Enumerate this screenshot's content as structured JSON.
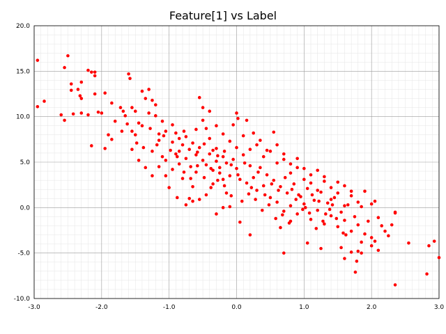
{
  "chart_data": {
    "type": "scatter",
    "title": "Feature[1] vs Label",
    "xlabel": "",
    "ylabel": "",
    "xlim": [
      -3.0,
      3.0
    ],
    "ylim": [
      -10.0,
      20.0
    ],
    "x_ticks": [
      "-3.0",
      "-2.0",
      "-1.0",
      "0.0",
      "1.0",
      "2.0",
      "3.0"
    ],
    "y_ticks": [
      "20.0",
      "15.0",
      "10.0",
      "5.0",
      "0.0",
      "-5.0",
      "-10.0"
    ],
    "grid": true,
    "marker_color": "#ff0000",
    "points": [
      [
        -2.95,
        16.2
      ],
      [
        -2.95,
        11.1
      ],
      [
        -2.85,
        11.7
      ],
      [
        -2.55,
        15.4
      ],
      [
        -2.5,
        16.7
      ],
      [
        -2.55,
        9.6
      ],
      [
        -2.45,
        13.6
      ],
      [
        -2.45,
        12.9
      ],
      [
        -2.35,
        13.0
      ],
      [
        -2.32,
        12.3
      ],
      [
        -2.3,
        13.8
      ],
      [
        -2.3,
        12.0
      ],
      [
        -2.2,
        15.1
      ],
      [
        -2.15,
        14.9
      ],
      [
        -2.1,
        14.5
      ],
      [
        -2.1,
        14.9
      ],
      [
        -2.1,
        12.5
      ],
      [
        -2.05,
        10.5
      ],
      [
        -2.0,
        10.4
      ],
      [
        -2.15,
        6.8
      ],
      [
        -1.95,
        12.6
      ],
      [
        -1.85,
        11.5
      ],
      [
        -1.9,
        8.0
      ],
      [
        -1.95,
        6.5
      ],
      [
        -2.6,
        10.2
      ],
      [
        -2.3,
        10.4
      ],
      [
        -2.2,
        10.2
      ],
      [
        -2.42,
        10.3
      ],
      [
        -1.85,
        7.5
      ],
      [
        -1.6,
        14.7
      ],
      [
        -1.58,
        14.2
      ],
      [
        -1.55,
        11.0
      ],
      [
        -1.5,
        10.6
      ],
      [
        -1.5,
        8.0
      ],
      [
        -1.45,
        9.3
      ],
      [
        -1.4,
        12.8
      ],
      [
        -1.35,
        12.0
      ],
      [
        -1.3,
        13.0
      ],
      [
        -1.25,
        11.8
      ],
      [
        -1.2,
        10.1
      ],
      [
        -1.15,
        8.1
      ],
      [
        -1.1,
        5.6
      ],
      [
        -1.05,
        3.5
      ],
      [
        -1.0,
        2.2
      ],
      [
        -1.55,
        6.4
      ],
      [
        -1.7,
        8.4
      ],
      [
        -1.8,
        9.5
      ],
      [
        -1.65,
        10.1
      ],
      [
        -1.45,
        5.2
      ],
      [
        -1.35,
        4.4
      ],
      [
        -1.25,
        6.2
      ],
      [
        -1.15,
        7.4
      ],
      [
        -1.72,
        11.0
      ],
      [
        -1.68,
        10.6
      ],
      [
        -1.62,
        9.2
      ],
      [
        -1.55,
        8.4
      ],
      [
        -1.4,
        9.0
      ],
      [
        -1.3,
        10.4
      ],
      [
        -1.2,
        11.3
      ],
      [
        -1.1,
        9.5
      ],
      [
        -1.05,
        8.4
      ],
      [
        -0.95,
        7.2
      ],
      [
        -0.9,
        5.9
      ],
      [
        -0.85,
        4.8
      ],
      [
        -0.8,
        3.2
      ],
      [
        -0.75,
        0.3
      ],
      [
        -0.7,
        1.0
      ],
      [
        -0.65,
        2.3
      ],
      [
        -0.6,
        3.9
      ],
      [
        -0.55,
        12.1
      ],
      [
        -0.5,
        11.0
      ],
      [
        -0.45,
        8.7
      ],
      [
        -0.4,
        7.6
      ],
      [
        -0.35,
        6.3
      ],
      [
        -0.3,
        5.1
      ],
      [
        -0.25,
        4.4
      ],
      [
        -0.2,
        3.1
      ],
      [
        -0.15,
        1.6
      ],
      [
        -0.1,
        0.1
      ],
      [
        -0.05,
        9.1
      ],
      [
        0.0,
        10.4
      ],
      [
        0.02,
        9.8
      ],
      [
        -0.95,
        9.1
      ],
      [
        -0.9,
        8.2
      ],
      [
        -0.85,
        7.6
      ],
      [
        -0.8,
        6.9
      ],
      [
        -0.75,
        7.8
      ],
      [
        -0.7,
        6.4
      ],
      [
        -0.65,
        7.1
      ],
      [
        -0.6,
        5.8
      ],
      [
        -0.55,
        6.6
      ],
      [
        -0.5,
        5.2
      ],
      [
        -0.45,
        4.7
      ],
      [
        -0.4,
        5.9
      ],
      [
        -0.35,
        4.1
      ],
      [
        -0.3,
        6.5
      ],
      [
        -0.25,
        3.8
      ],
      [
        -0.2,
        5.6
      ],
      [
        -0.15,
        4.9
      ],
      [
        -0.1,
        3.5
      ],
      [
        -0.05,
        5.3
      ],
      [
        0.0,
        4.3
      ],
      [
        0.05,
        3.1
      ],
      [
        0.1,
        5.8
      ],
      [
        0.15,
        2.7
      ],
      [
        0.2,
        4.6
      ],
      [
        0.25,
        3.3
      ],
      [
        0.3,
        1.9
      ],
      [
        0.35,
        4.4
      ],
      [
        0.4,
        2.4
      ],
      [
        0.45,
        3.6
      ],
      [
        0.5,
        1.1
      ],
      [
        0.55,
        3.0
      ],
      [
        0.6,
        0.6
      ],
      [
        0.65,
        2.3
      ],
      [
        0.7,
        -0.4
      ],
      [
        0.75,
        1.6
      ],
      [
        0.8,
        0.2
      ],
      [
        0.85,
        2.6
      ],
      [
        0.9,
        -0.7
      ],
      [
        0.95,
        1.2
      ],
      [
        1.0,
        0.4
      ],
      [
        1.05,
        2.1
      ],
      [
        1.1,
        -1.3
      ],
      [
        1.15,
        0.8
      ],
      [
        1.2,
        -0.3
      ],
      [
        1.25,
        1.7
      ],
      [
        1.3,
        -1.8
      ],
      [
        1.35,
        0.5
      ],
      [
        1.4,
        -0.9
      ],
      [
        1.45,
        1.1
      ],
      [
        1.5,
        -2.1
      ],
      [
        1.55,
        -0.5
      ],
      [
        1.6,
        -1.4
      ],
      [
        1.65,
        0.3
      ],
      [
        1.7,
        -2.6
      ],
      [
        1.75,
        -1.0
      ],
      [
        1.8,
        -1.9
      ],
      [
        1.85,
        0.1
      ],
      [
        1.9,
        -2.9
      ],
      [
        1.95,
        -1.5
      ],
      [
        2.0,
        -3.3
      ],
      [
        0.15,
        9.6
      ],
      [
        0.25,
        8.2
      ],
      [
        0.35,
        7.4
      ],
      [
        0.45,
        6.3
      ],
      [
        0.55,
        8.3
      ],
      [
        0.6,
        6.9
      ],
      [
        0.7,
        5.9
      ],
      [
        0.8,
        4.8
      ],
      [
        0.9,
        5.4
      ],
      [
        1.0,
        4.3
      ],
      [
        1.1,
        3.6
      ],
      [
        1.2,
        4.1
      ],
      [
        1.3,
        2.9
      ],
      [
        1.4,
        2.2
      ],
      [
        1.5,
        1.6
      ],
      [
        1.6,
        2.4
      ],
      [
        1.7,
        1.3
      ],
      [
        1.8,
        0.6
      ],
      [
        1.9,
        1.8
      ],
      [
        2.0,
        0.4
      ],
      [
        2.05,
        0.7
      ],
      [
        2.1,
        -1.1
      ],
      [
        2.15,
        -2.0
      ],
      [
        2.2,
        -2.6
      ],
      [
        2.3,
        -1.9
      ],
      [
        2.35,
        -0.5
      ],
      [
        2.35,
        -0.6
      ],
      [
        2.1,
        -4.7
      ],
      [
        2.05,
        -3.7
      ],
      [
        2.0,
        -4.2
      ],
      [
        1.85,
        -3.8
      ],
      [
        1.8,
        -4.8
      ],
      [
        1.78,
        -5.9
      ],
      [
        1.76,
        -7.1
      ],
      [
        1.85,
        -5.0
      ],
      [
        1.7,
        -4.9
      ],
      [
        1.6,
        -5.6
      ],
      [
        1.55,
        -4.4
      ],
      [
        1.25,
        -4.5
      ],
      [
        1.05,
        -3.9
      ],
      [
        0.7,
        -5.0
      ],
      [
        0.2,
        -3.0
      ],
      [
        1.58,
        -2.8
      ],
      [
        1.62,
        -3.0
      ],
      [
        2.25,
        -3.1
      ],
      [
        2.35,
        -8.5
      ],
      [
        2.55,
        -3.9
      ],
      [
        2.82,
        -7.3
      ],
      [
        2.85,
        -4.2
      ],
      [
        2.93,
        -3.7
      ],
      [
        3.0,
        -5.5
      ],
      [
        0.65,
        -2.2
      ],
      [
        0.8,
        -1.5
      ],
      [
        0.05,
        -1.6
      ],
      [
        -0.3,
        -0.7
      ],
      [
        -0.55,
        0.9
      ],
      [
        -0.65,
        0.7
      ],
      [
        -0.45,
        1.4
      ],
      [
        -0.2,
        0.0
      ],
      [
        -0.35,
        2.6
      ],
      [
        -0.88,
        1.1
      ],
      [
        -0.78,
        3.9
      ],
      [
        -0.68,
        3.2
      ],
      [
        -0.58,
        4.6
      ],
      [
        -0.48,
        3.3
      ],
      [
        -0.38,
        2.2
      ],
      [
        -0.28,
        3.0
      ],
      [
        -0.18,
        2.4
      ],
      [
        -0.08,
        1.3
      ],
      [
        0.08,
        0.7
      ],
      [
        0.18,
        1.5
      ],
      [
        0.28,
        0.9
      ],
      [
        0.38,
        -0.3
      ],
      [
        0.48,
        0.3
      ],
      [
        0.58,
        -1.2
      ],
      [
        0.68,
        -0.8
      ],
      [
        0.78,
        -1.7
      ],
      [
        0.88,
        0.9
      ],
      [
        0.98,
        -0.2
      ],
      [
        1.08,
        -0.6
      ],
      [
        1.18,
        -2.3
      ],
      [
        1.28,
        -1.5
      ],
      [
        1.38,
        -0.2
      ],
      [
        1.48,
        -1.2
      ],
      [
        -1.25,
        3.5
      ],
      [
        -1.15,
        4.5
      ],
      [
        -1.05,
        5.2
      ],
      [
        -0.95,
        4.2
      ],
      [
        -0.85,
        6.2
      ],
      [
        -0.75,
        5.4
      ],
      [
        -0.6,
        8.6
      ],
      [
        -0.5,
        9.6
      ],
      [
        -0.4,
        10.6
      ],
      [
        -0.3,
        9.0
      ],
      [
        -0.2,
        8.1
      ],
      [
        -0.1,
        7.3
      ],
      [
        0.0,
        6.6
      ],
      [
        0.1,
        7.9
      ],
      [
        0.2,
        6.4
      ],
      [
        0.3,
        6.9
      ],
      [
        0.4,
        5.6
      ],
      [
        0.5,
        6.2
      ],
      [
        0.6,
        4.9
      ],
      [
        0.7,
        5.3
      ],
      [
        0.8,
        3.8
      ],
      [
        0.9,
        4.4
      ],
      [
        1.0,
        3.1
      ],
      [
        1.1,
        2.7
      ],
      [
        1.2,
        1.9
      ],
      [
        1.3,
        3.4
      ],
      [
        1.4,
        0.9
      ],
      [
        1.5,
        2.8
      ],
      [
        1.6,
        0.2
      ],
      [
        1.7,
        1.8
      ],
      [
        -1.48,
        7.1
      ],
      [
        -1.38,
        6.6
      ],
      [
        -1.28,
        8.7
      ],
      [
        -1.18,
        6.9
      ],
      [
        -1.08,
        7.9
      ],
      [
        -0.98,
        6.3
      ],
      [
        -0.88,
        5.6
      ],
      [
        -0.78,
        8.4
      ],
      [
        -0.68,
        4.5
      ],
      [
        -0.58,
        6.1
      ],
      [
        -0.48,
        7.0
      ],
      [
        -0.38,
        4.3
      ],
      [
        -0.28,
        5.7
      ],
      [
        -0.18,
        6.2
      ],
      [
        -0.08,
        4.7
      ],
      [
        0.02,
        3.6
      ],
      [
        0.12,
        4.9
      ],
      [
        0.22,
        2.2
      ],
      [
        0.32,
        3.9
      ],
      [
        0.42,
        1.4
      ],
      [
        0.52,
        2.6
      ],
      [
        0.62,
        1.9
      ],
      [
        0.72,
        3.3
      ],
      [
        0.82,
        2.0
      ],
      [
        0.92,
        1.4
      ],
      [
        1.02,
        0.0
      ],
      [
        1.12,
        1.4
      ],
      [
        1.22,
        0.7
      ],
      [
        1.32,
        -0.7
      ],
      [
        1.42,
        0.3
      ]
    ]
  }
}
